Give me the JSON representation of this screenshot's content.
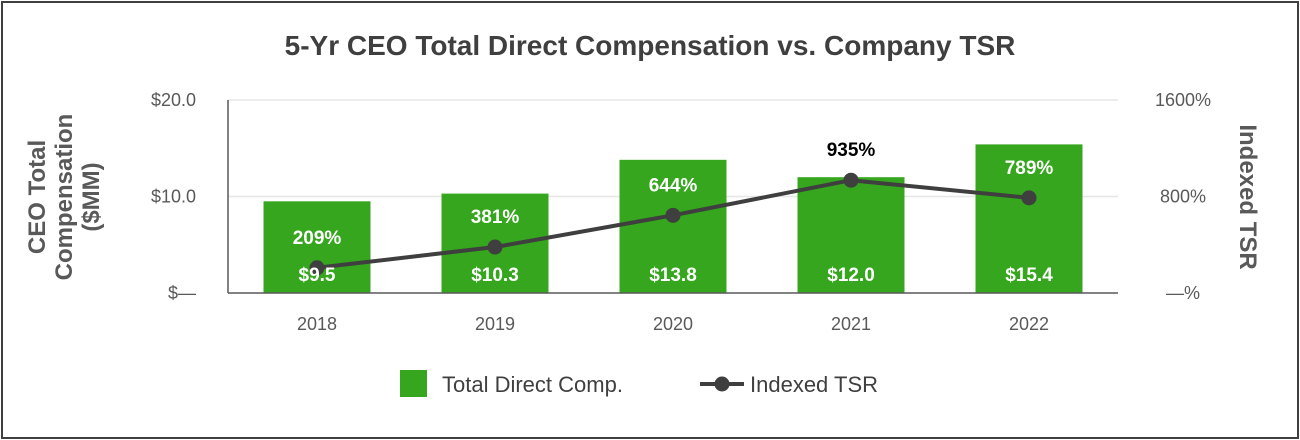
{
  "chart_data": {
    "type": "bar+line",
    "title": "5-Yr CEO Total Direct Compensation vs. Company TSR",
    "categories": [
      "2018",
      "2019",
      "2020",
      "2021",
      "2022"
    ],
    "series": [
      {
        "name": "Total Direct Comp.",
        "type": "bar",
        "axis": "left",
        "values": [
          9.5,
          10.3,
          13.8,
          12.0,
          15.4
        ],
        "labels": [
          "$9.5",
          "$10.3",
          "$13.8",
          "$12.0",
          "$15.4"
        ]
      },
      {
        "name": "Indexed TSR",
        "type": "line",
        "axis": "right",
        "values": [
          209,
          381,
          644,
          935,
          789
        ],
        "labels": [
          "209%",
          "381%",
          "644%",
          "935%",
          "789%"
        ]
      }
    ],
    "left_axis": {
      "label": "CEO Total Compensation ($MM)",
      "label_lines": [
        "CEO Total",
        "Compensation",
        "($MM)"
      ],
      "range": [
        0,
        20
      ],
      "ticks": [
        {
          "value": 0,
          "label": "$—"
        },
        {
          "value": 10,
          "label": "$10.0"
        },
        {
          "value": 20,
          "label": "$20.0"
        }
      ]
    },
    "right_axis": {
      "label": "Indexed TSR",
      "range": [
        0,
        1600
      ],
      "ticks": [
        {
          "value": 0,
          "label": "—%"
        },
        {
          "value": 800,
          "label": "800%"
        },
        {
          "value": 1600,
          "label": "1600%"
        }
      ]
    },
    "grid": true,
    "legend_position": "bottom",
    "colors": {
      "bar": "#35a61d",
      "line": "#3f3f3f",
      "grid": "#e6e6e6",
      "axis": "#595959"
    }
  }
}
